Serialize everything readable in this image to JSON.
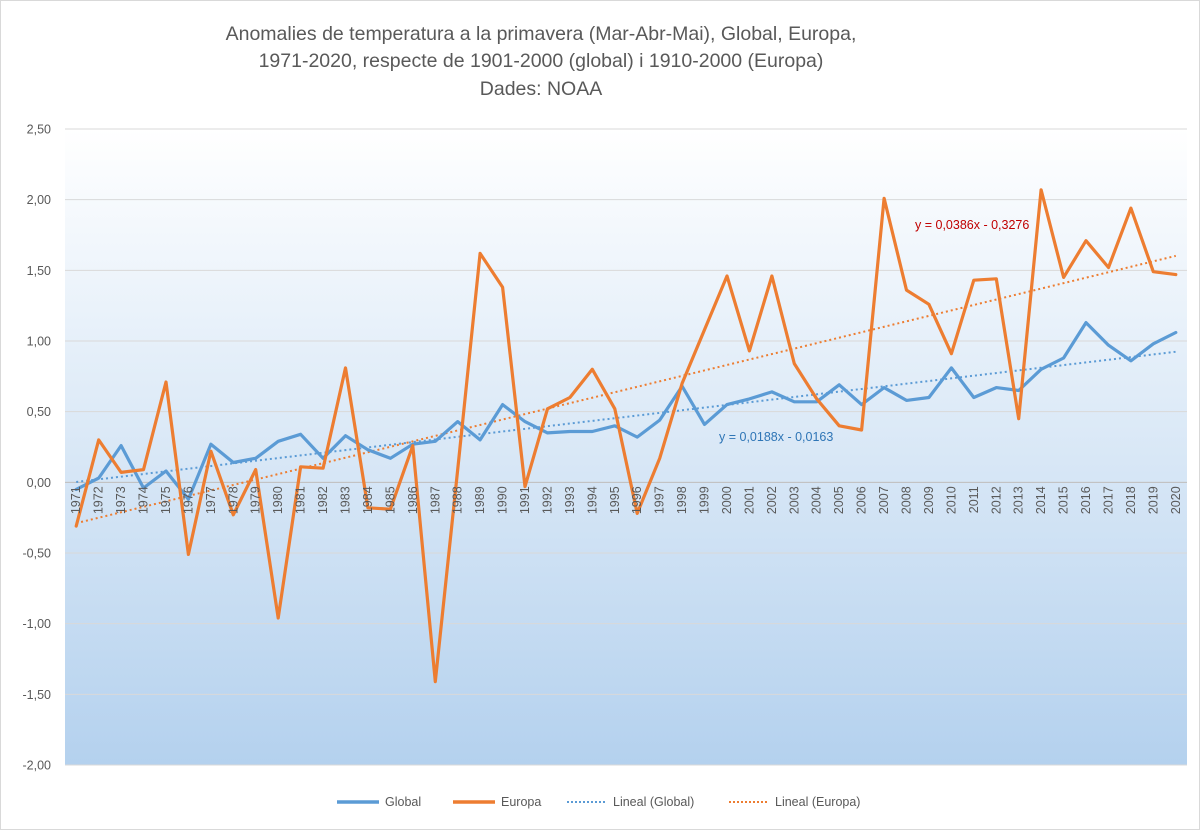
{
  "chart_data": {
    "type": "line",
    "title_lines": [
      "Anomalies de temperatura a la primavera (Mar-Abr-Mai), Global, Europa,",
      "1971-2020, respecte de 1901-2000 (global) i 1910-2000 (Europa)",
      "Dades: NOAA"
    ],
    "xlabel": "",
    "ylabel": "",
    "ylim": [
      -2.0,
      2.5
    ],
    "y_ticks": [
      "2,50",
      "2,00",
      "1,50",
      "1,00",
      "0,50",
      "0,00",
      "-0,50",
      "-1,00",
      "-1,50",
      "-2,00"
    ],
    "y_tick_values": [
      2.5,
      2.0,
      1.5,
      1.0,
      0.5,
      0.0,
      -0.5,
      -1.0,
      -1.5,
      -2.0
    ],
    "grid": true,
    "legend_position": "bottom",
    "categories": [
      "1971",
      "1972",
      "1973",
      "1974",
      "1975",
      "1976",
      "1977",
      "1978",
      "1979",
      "1980",
      "1981",
      "1982",
      "1983",
      "1984",
      "1985",
      "1986",
      "1987",
      "1988",
      "1989",
      "1990",
      "1991",
      "1992",
      "1993",
      "1994",
      "1995",
      "1996",
      "1997",
      "1998",
      "1999",
      "2000",
      "2001",
      "2002",
      "2003",
      "2004",
      "2005",
      "2006",
      "2007",
      "2008",
      "2009",
      "2010",
      "2011",
      "2012",
      "2013",
      "2014",
      "2015",
      "2016",
      "2017",
      "2018",
      "2019",
      "2020"
    ],
    "series": [
      {
        "name": "Global",
        "color": "#5b9bd5",
        "values": [
          -0.05,
          0.03,
          0.26,
          -0.04,
          0.08,
          -0.12,
          0.27,
          0.14,
          0.17,
          0.29,
          0.34,
          0.17,
          0.33,
          0.23,
          0.17,
          0.27,
          0.29,
          0.43,
          0.3,
          0.55,
          0.43,
          0.35,
          0.36,
          0.36,
          0.4,
          0.32,
          0.44,
          0.68,
          0.41,
          0.55,
          0.59,
          0.64,
          0.57,
          0.57,
          0.69,
          0.55,
          0.67,
          0.58,
          0.6,
          0.81,
          0.6,
          0.67,
          0.65,
          0.8,
          0.88,
          1.13,
          0.97,
          0.86,
          0.98,
          1.06
        ]
      },
      {
        "name": "Europa",
        "color": "#ed7d31",
        "values": [
          -0.31,
          0.3,
          0.07,
          0.09,
          0.71,
          -0.51,
          0.22,
          -0.23,
          0.09,
          -0.96,
          0.11,
          0.1,
          0.81,
          -0.18,
          -0.19,
          0.26,
          -1.41,
          0.09,
          1.62,
          1.38,
          -0.03,
          0.52,
          0.6,
          0.8,
          0.52,
          -0.22,
          0.17,
          0.7,
          1.08,
          1.46,
          0.93,
          1.46,
          0.84,
          0.59,
          0.4,
          0.37,
          2.01,
          1.36,
          1.26,
          0.91,
          1.43,
          1.44,
          0.45,
          2.07,
          1.45,
          1.71,
          1.52,
          1.94,
          1.49,
          1.47
        ]
      }
    ],
    "trendlines": [
      {
        "name": "Lineal  (Global)",
        "color": "#5b9bd5",
        "slope": 0.0188,
        "intercept": -0.0163,
        "equation": "y = 0,0188x - 0,0163",
        "label_color": "#2e75b6"
      },
      {
        "name": "Lineal  (Europa)",
        "color": "#ed7d31",
        "slope": 0.0386,
        "intercept": -0.3276,
        "equation": "y = 0,0386x - 0,3276",
        "label_color": "#c00000"
      }
    ]
  }
}
